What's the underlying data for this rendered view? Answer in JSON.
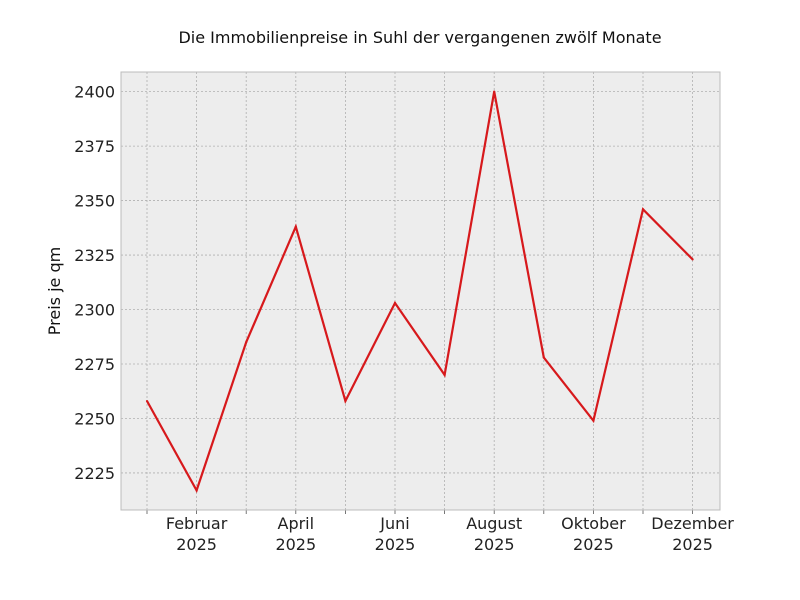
{
  "chart_data": {
    "type": "line",
    "title": "Die Immobilienpreise in Suhl der vergangenen zwölf Monate",
    "xlabel": "",
    "ylabel": "Preis je qm",
    "ylim": [
      2208,
      2409
    ],
    "yticks": [
      2225,
      2250,
      2275,
      2300,
      2325,
      2350,
      2375,
      2400
    ],
    "grid": true,
    "x": [
      "2025-01",
      "2025-02",
      "2025-03",
      "2025-04",
      "2025-05",
      "2025-06",
      "2025-07",
      "2025-08",
      "2025-09",
      "2025-10",
      "2025-11",
      "2025-12"
    ],
    "xtick_labels": [
      {
        "month": "Februar",
        "year": "2025"
      },
      {
        "month": "April",
        "year": "2025"
      },
      {
        "month": "Juni",
        "year": "2025"
      },
      {
        "month": "August",
        "year": "2025"
      },
      {
        "month": "Oktober",
        "year": "2025"
      },
      {
        "month": "Dezember",
        "year": "2025"
      }
    ],
    "series": [
      {
        "values": [
          2258,
          2217,
          2285,
          2338,
          2258,
          2303,
          2270,
          2400,
          2278,
          2249,
          2346,
          2323
        ],
        "color": "#d7191c"
      }
    ]
  },
  "colors": {
    "plot_background": "#ededed",
    "grid": "#b0b0b0",
    "frame": "#bcbcbc"
  }
}
